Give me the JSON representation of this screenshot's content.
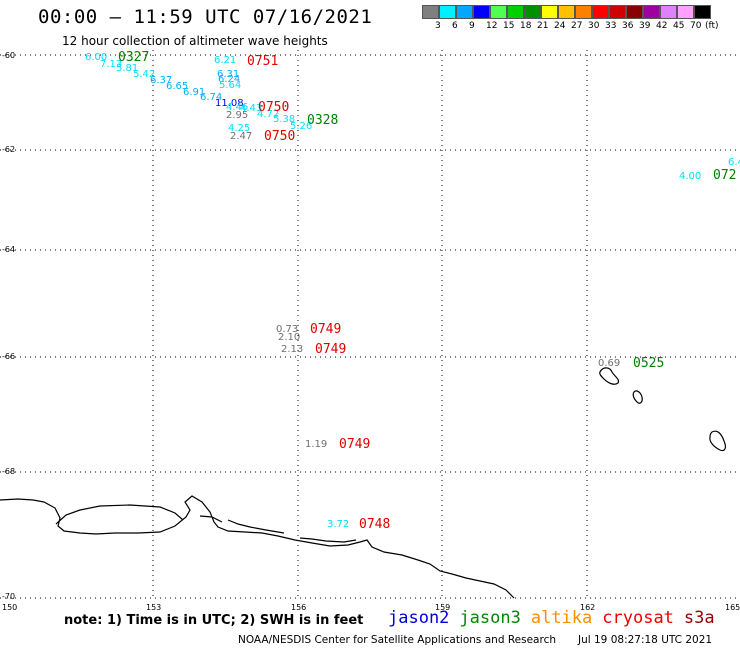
{
  "header": {
    "title": "00:00 – 11:59 UTC 07/16/2021",
    "subtitle": "12 hour collection of altimeter wave heights"
  },
  "legend": {
    "colors": [
      "#7f7f7f",
      "#00f0ff",
      "#00a8ff",
      "#0000ff",
      "#50ff50",
      "#00d000",
      "#009000",
      "#ffff00",
      "#ffc000",
      "#ff8000",
      "#ff0000",
      "#d00000",
      "#880000",
      "#a000a0",
      "#e080ff",
      "#ffa0ff",
      "#000000"
    ],
    "labels": [
      "3",
      "6",
      "9",
      "12",
      "15",
      "18",
      "21",
      "24",
      "27",
      "30",
      "33",
      "36",
      "39",
      "42",
      "45",
      "70",
      "(ft)"
    ]
  },
  "axes": {
    "lat_labels": [
      "-60",
      "-62",
      "-64",
      "-66",
      "-68",
      "-70"
    ],
    "lon_labels": [
      "150",
      "153",
      "156",
      "159",
      "162",
      "165"
    ]
  },
  "observations": [
    {
      "v": "6.00",
      "c": "#00e0ff"
    },
    {
      "v": "7.13",
      "c": "#00e0ff"
    },
    {
      "v": "5.81",
      "c": "#00e0ff"
    },
    {
      "v": "5.42",
      "c": "#00e0ff"
    },
    {
      "v": "6.37",
      "c": "#00b0ff"
    },
    {
      "v": "6.65",
      "c": "#00b0ff"
    },
    {
      "v": "6.91",
      "c": "#00b0ff"
    },
    {
      "v": "6.74",
      "c": "#00b0ff"
    },
    {
      "v": "6.21",
      "c": "#00e0ff"
    },
    {
      "v": "6.31",
      "c": "#00b0ff"
    },
    {
      "v": "6.24",
      "c": "#00b0ff"
    },
    {
      "v": "5.64",
      "c": "#00e0ff"
    },
    {
      "v": "11.08",
      "c": "#0000ff"
    },
    {
      "v": "4.46",
      "c": "#00e0ff"
    },
    {
      "v": "4.43",
      "c": "#00e0ff"
    },
    {
      "v": "4.72",
      "c": "#00e0ff"
    },
    {
      "v": "2.95",
      "c": "#707070"
    },
    {
      "v": "5.38",
      "c": "#00e0ff"
    },
    {
      "v": "5.26",
      "c": "#00e0ff"
    },
    {
      "v": "4.25",
      "c": "#00e0ff"
    },
    {
      "v": "2.47",
      "c": "#707070"
    },
    {
      "v": "4.00",
      "c": "#00e0ff"
    },
    {
      "v": "6.4",
      "c": "#00e0ff"
    },
    {
      "v": "0.73",
      "c": "#707070"
    },
    {
      "v": "2.10",
      "c": "#707070"
    },
    {
      "v": "2.13",
      "c": "#707070"
    },
    {
      "v": "0.69",
      "c": "#707070"
    },
    {
      "v": "1.19",
      "c": "#707070"
    },
    {
      "v": "3.72",
      "c": "#00e0ff"
    }
  ],
  "pass_labels": [
    {
      "v": "0327",
      "c": "#008000"
    },
    {
      "v": "0751",
      "c": "#e00000"
    },
    {
      "v": "0750",
      "c": "#e00000"
    },
    {
      "v": "0328",
      "c": "#008000"
    },
    {
      "v": "0750",
      "c": "#e00000"
    },
    {
      "v": "072",
      "c": "#008000"
    },
    {
      "v": "0749",
      "c": "#e00000"
    },
    {
      "v": "0749",
      "c": "#e00000"
    },
    {
      "v": "0525",
      "c": "#008000"
    },
    {
      "v": "0749",
      "c": "#e00000"
    },
    {
      "v": "0748",
      "c": "#e00000"
    }
  ],
  "footer": {
    "note": "note: 1) Time is in UTC; 2) SWH is in feet",
    "satellites": [
      {
        "name": "jason2",
        "color": "#0000dd"
      },
      {
        "name": "jason3",
        "color": "#008800"
      },
      {
        "name": "altika",
        "color": "#ff8c00"
      },
      {
        "name": "cryosat",
        "color": "#ee0000"
      },
      {
        "name": "s3a",
        "color": "#990000"
      }
    ],
    "credit": "NOAA/NESDIS Center for Satellite Applications and Research",
    "date": "Jul 19 08:27:18 UTC 2021"
  }
}
